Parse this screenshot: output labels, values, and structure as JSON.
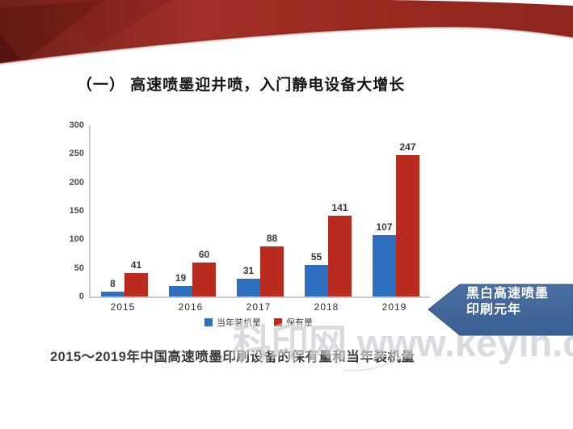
{
  "slide": {
    "title": "（一） 高速喷墨迎井喷，入门静电设备大增长",
    "caption": "2015～2019年中国高速喷墨印刷设备的保有量和当年装机量",
    "banner": {
      "line1": "黑白高速喷墨",
      "line2": "印刷元年"
    },
    "watermark": "科印网 www.keyin.cn"
  },
  "colors": {
    "bar_blue": "#2E6FC0",
    "bar_red": "#B82B1E",
    "banner_blue_top": "#4A70A1",
    "banner_blue_bottom": "#3A5F93",
    "header_red_dark": "#5E1511",
    "header_red_mid": "#A33028",
    "header_red_right": "#8E261E",
    "axis_gray": "#C9C9C9",
    "label_gray": "#3A3A3A"
  },
  "chart_data": {
    "type": "bar",
    "title": "",
    "xlabel": "",
    "ylabel": "",
    "categories": [
      "2015",
      "2016",
      "2017",
      "2018",
      "2019"
    ],
    "series": [
      {
        "name": "当年装机量",
        "color_key": "bar_blue",
        "values": [
          8,
          19,
          31,
          55,
          107
        ]
      },
      {
        "name": "保有量",
        "color_key": "bar_red",
        "values": [
          41,
          60,
          88,
          141,
          247
        ]
      }
    ],
    "ylim": [
      0,
      300
    ],
    "yticks": [
      0,
      50,
      100,
      150,
      200,
      250,
      300
    ],
    "grid": false,
    "legend_position": "bottom"
  }
}
